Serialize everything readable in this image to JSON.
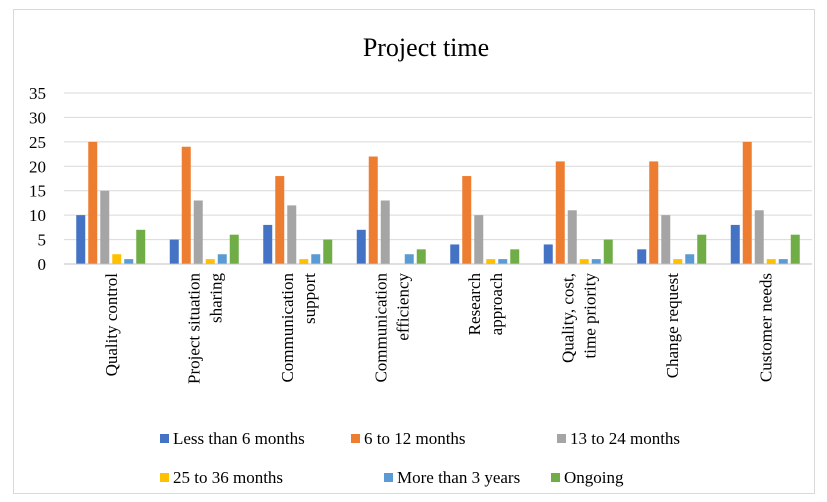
{
  "chart_data": {
    "type": "bar",
    "title": "Project time",
    "xlabel": "",
    "ylabel": "",
    "ylim": [
      0,
      35
    ],
    "yticks": [
      0,
      5,
      10,
      15,
      20,
      25,
      30,
      35
    ],
    "grid": true,
    "legend_position": "bottom",
    "categories": [
      [
        "Quality control"
      ],
      [
        "Project situation",
        "sharing"
      ],
      [
        "Communication",
        "support"
      ],
      [
        "Communication",
        "efficiency"
      ],
      [
        "Research",
        "approach"
      ],
      [
        "Quality, cost,",
        "time priority"
      ],
      [
        "Change request"
      ],
      [
        "Customer needs"
      ]
    ],
    "series": [
      {
        "name": "Less than 6 months",
        "color": "#4472c4",
        "values": [
          10,
          5,
          8,
          7,
          4,
          4,
          3,
          8
        ]
      },
      {
        "name": "6 to 12 months",
        "color": "#ed7d31",
        "values": [
          25,
          24,
          18,
          22,
          18,
          21,
          21,
          25
        ]
      },
      {
        "name": "13 to 24 months",
        "color": "#a5a5a5",
        "values": [
          15,
          13,
          12,
          13,
          10,
          11,
          10,
          11
        ]
      },
      {
        "name": "25 to 36 months",
        "color": "#ffc000",
        "values": [
          2,
          1,
          1,
          0,
          1,
          1,
          1,
          1
        ]
      },
      {
        "name": "More than 3 years",
        "color": "#5b9bd5",
        "values": [
          1,
          2,
          2,
          2,
          1,
          1,
          2,
          1
        ]
      },
      {
        "name": "Ongoing",
        "color": "#70ad47",
        "values": [
          7,
          6,
          5,
          3,
          3,
          5,
          6,
          6
        ]
      }
    ]
  },
  "colors": {
    "gridline": "#d9d9d9",
    "axis": "#bfbfbf",
    "border": "#d9d9d9"
  }
}
